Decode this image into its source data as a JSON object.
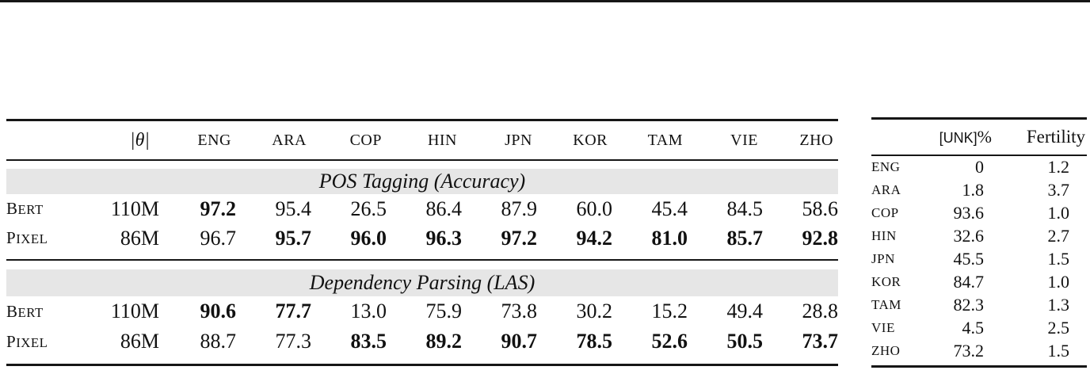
{
  "colors": {
    "band": "#e6e6e6",
    "rule": "#161616",
    "text": "#111111"
  },
  "main_table": {
    "theta_header": "|θ|",
    "languages": [
      "ENG",
      "ARA",
      "COP",
      "HIN",
      "JPN",
      "KOR",
      "TAM",
      "VIE",
      "ZHO"
    ],
    "sections": [
      {
        "title": "POS Tagging (Accuracy)",
        "rows": [
          {
            "model": "BERT",
            "params": "110M",
            "values": [
              "97.2",
              "95.4",
              "26.5",
              "86.4",
              "87.9",
              "60.0",
              "45.4",
              "84.5",
              "58.6"
            ],
            "bold": [
              true,
              false,
              false,
              false,
              false,
              false,
              false,
              false,
              false
            ]
          },
          {
            "model": "PIXEL",
            "params": "86M",
            "values": [
              "96.7",
              "95.7",
              "96.0",
              "96.3",
              "97.2",
              "94.2",
              "81.0",
              "85.7",
              "92.8"
            ],
            "bold": [
              false,
              true,
              true,
              true,
              true,
              true,
              true,
              true,
              true
            ]
          }
        ]
      },
      {
        "title": "Dependency Parsing (LAS)",
        "rows": [
          {
            "model": "BERT",
            "params": "110M",
            "values": [
              "90.6",
              "77.7",
              "13.0",
              "75.9",
              "73.8",
              "30.2",
              "15.2",
              "49.4",
              "28.8"
            ],
            "bold": [
              true,
              true,
              false,
              false,
              false,
              false,
              false,
              false,
              false
            ]
          },
          {
            "model": "PIXEL",
            "params": "86M",
            "values": [
              "88.7",
              "77.3",
              "83.5",
              "89.2",
              "90.7",
              "78.5",
              "52.6",
              "50.5",
              "73.7"
            ],
            "bold": [
              false,
              false,
              true,
              true,
              true,
              true,
              true,
              true,
              true
            ]
          }
        ]
      }
    ]
  },
  "side_table": {
    "unk_header": "[UNK]",
    "unk_percent": "%",
    "fertility_header": "Fertility",
    "rows": [
      {
        "lang": "ENG",
        "unk": "0",
        "fertility": "1.2"
      },
      {
        "lang": "ARA",
        "unk": "1.8",
        "fertility": "3.7"
      },
      {
        "lang": "COP",
        "unk": "93.6",
        "fertility": "1.0"
      },
      {
        "lang": "HIN",
        "unk": "32.6",
        "fertility": "2.7"
      },
      {
        "lang": "JPN",
        "unk": "45.5",
        "fertility": "1.5"
      },
      {
        "lang": "KOR",
        "unk": "84.7",
        "fertility": "1.0"
      },
      {
        "lang": "TAM",
        "unk": "82.3",
        "fertility": "1.3"
      },
      {
        "lang": "VIE",
        "unk": "4.5",
        "fertility": "2.5"
      },
      {
        "lang": "ZHO",
        "unk": "73.2",
        "fertility": "1.5"
      }
    ]
  }
}
